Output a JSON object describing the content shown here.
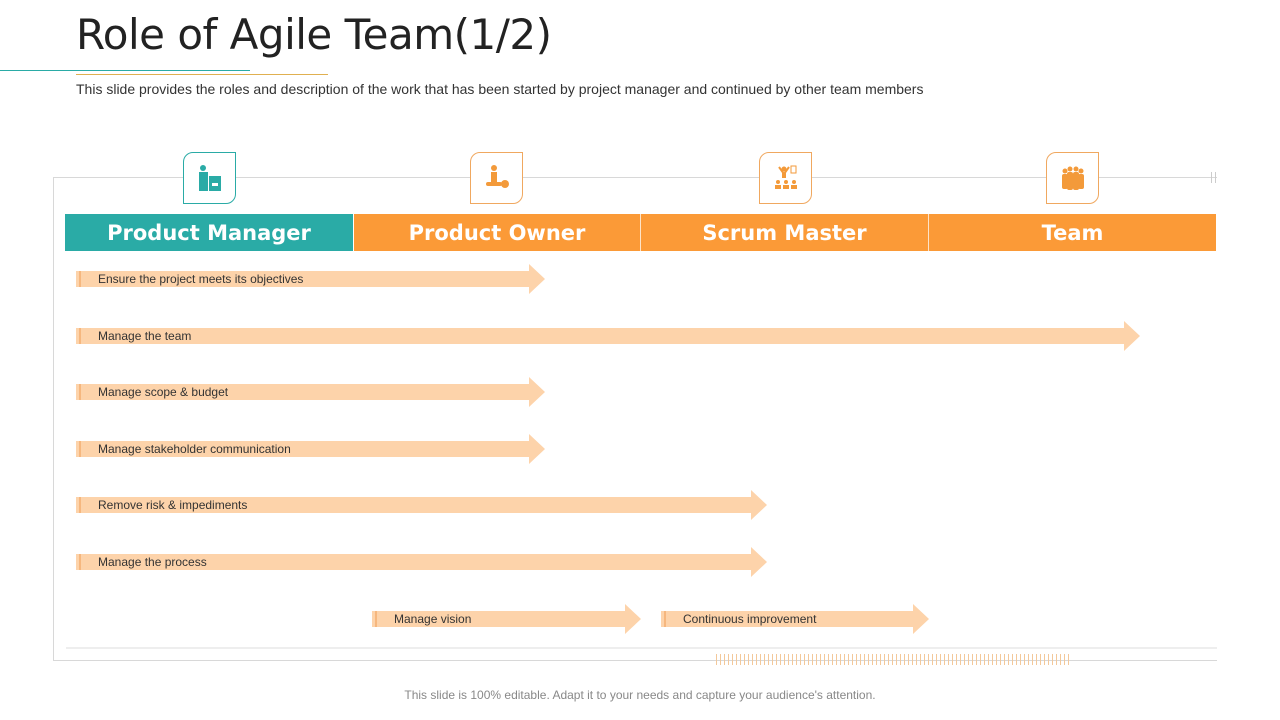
{
  "title": "Role of Agile Team(1/2)",
  "subtitle": "This slide provides the roles and description of the work that has been started by project manager and continued by other team members",
  "columns": [
    {
      "label": "Product Manager",
      "icon": "manager-with-box-icon",
      "color": "#2aaba6"
    },
    {
      "label": "Product Owner",
      "icon": "person-with-key-icon",
      "color": "#fb9a37"
    },
    {
      "label": "Scrum Master",
      "icon": "presenter-audience-icon",
      "color": "#fb9a37"
    },
    {
      "label": "Team",
      "icon": "group-people-icon",
      "color": "#fb9a37"
    }
  ],
  "tasks": [
    {
      "label": "Ensure the project meets its objectives"
    },
    {
      "label": "Manage the team"
    },
    {
      "label": "Manage scope & budget"
    },
    {
      "label": "Manage stakeholder communication"
    },
    {
      "label": "Remove risk & impediments"
    },
    {
      "label": "Manage the process"
    },
    {
      "label": "Manage vision"
    },
    {
      "label": "Continuous improvement"
    }
  ],
  "footer": "This slide is 100% editable. Adapt it to your needs and capture your audience's attention."
}
